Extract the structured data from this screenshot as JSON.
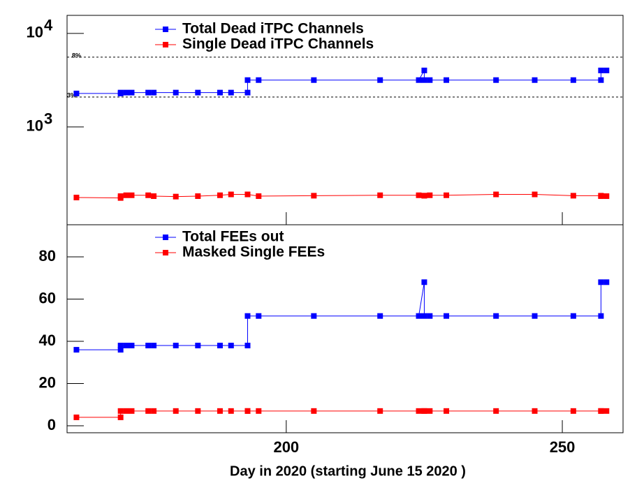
{
  "chart_data": [
    {
      "type": "line",
      "log_y": true,
      "x": [
        162,
        170,
        170,
        171,
        172,
        175,
        176,
        180,
        184,
        188,
        190,
        193,
        193,
        195,
        205,
        217,
        224,
        225,
        225,
        226,
        229,
        238,
        245,
        252,
        257,
        257,
        258
      ],
      "xlim": [
        160.3,
        261
      ],
      "xticks": [
        200,
        250
      ],
      "ylim": [
        90,
        15600
      ],
      "yticks": [
        {
          "value": 1000,
          "label": "10",
          "exponent": "3"
        },
        {
          "value": 10000,
          "label": "10",
          "exponent": "4"
        }
      ],
      "series": [
        {
          "name": "Total Dead iTPC Channels",
          "color": "#0000ff",
          "values": [
            2280,
            2280,
            2330,
            2330,
            2330,
            2330,
            2330,
            2330,
            2330,
            2330,
            2330,
            2330,
            3170,
            3170,
            3170,
            3170,
            3170,
            4020,
            3170,
            3170,
            3170,
            3170,
            3170,
            3170,
            3170,
            4020,
            4020
          ]
        },
        {
          "name": "Single Dead iTPC Channels",
          "color": "#ff0000",
          "values": [
            176,
            174,
            182,
            186,
            186,
            186,
            182,
            180,
            182,
            186,
            190,
            190,
            190,
            182,
            184,
            186,
            186,
            184,
            184,
            186,
            186,
            190,
            190,
            184,
            184,
            182,
            182
          ]
        }
      ],
      "annotations": [
        {
          "value": 5570,
          "label": "8%"
        },
        {
          "value": 2090,
          "label": "3%"
        }
      ]
    },
    {
      "type": "line",
      "x": [
        162,
        170,
        170,
        171,
        172,
        175,
        176,
        180,
        184,
        188,
        190,
        193,
        193,
        195,
        205,
        217,
        224,
        225,
        225,
        226,
        229,
        238,
        245,
        252,
        257,
        257,
        258
      ],
      "xlim": [
        160.3,
        261
      ],
      "xticks": [
        200,
        250
      ],
      "xlabel": "Day in 2020 (starting  June 15 2020 )",
      "ylim": [
        -3.3,
        95.2
      ],
      "yticks": [
        0,
        20,
        40,
        60,
        80
      ],
      "series": [
        {
          "name": "Total FEEs out",
          "color": "#0000ff",
          "values": [
            36,
            36,
            38,
            38,
            38,
            38,
            38,
            38,
            38,
            38,
            38,
            38,
            52,
            52,
            52,
            52,
            52,
            68,
            52,
            52,
            52,
            52,
            52,
            52,
            52,
            68,
            68
          ]
        },
        {
          "name": "Masked Single FEEs",
          "color": "#ff0000",
          "values": [
            4,
            4,
            7,
            7,
            7,
            7,
            7,
            7,
            7,
            7,
            7,
            7,
            7,
            7,
            7,
            7,
            7,
            7,
            7,
            7,
            7,
            7,
            7,
            7,
            7,
            7,
            7
          ]
        }
      ]
    }
  ]
}
